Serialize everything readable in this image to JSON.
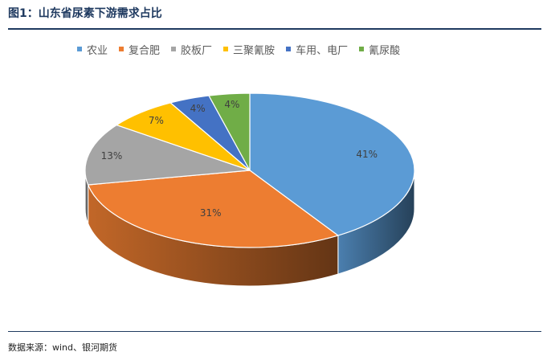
{
  "title": "图1：山东省尿素下游需求占比",
  "source": "数据来源：wind、银河期货",
  "chart_data": {
    "type": "pie",
    "title": "",
    "categories": [
      "农业",
      "复合肥",
      "胶板厂",
      "三聚氰胺",
      "车用、电厂",
      "氰尿酸"
    ],
    "values": [
      41,
      31,
      13,
      7,
      4,
      4
    ],
    "labels": [
      "41%",
      "31%",
      "13%",
      "7%",
      "4%",
      "4%"
    ],
    "colors": [
      "#5b9bd5",
      "#ed7d31",
      "#a5a5a5",
      "#ffc000",
      "#4472c4",
      "#70ad47"
    ],
    "legend_position": "top"
  }
}
